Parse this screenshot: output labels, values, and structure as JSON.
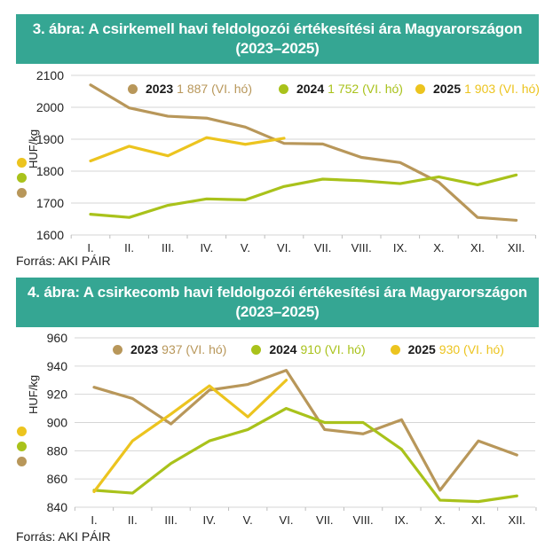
{
  "colors": {
    "title_bg": "#35a693",
    "2023": "#b8975a",
    "2024": "#a9c21b",
    "2025": "#ecc41f",
    "grid": "#d6d6d6"
  },
  "chart_data": [
    {
      "type": "line",
      "title": "3. ábra: A csirkemell havi feldolgozói értékesítési ára Magyarországon",
      "subtitle": "(2023–2025)",
      "xlabel": "",
      "ylabel": "HUF/kg",
      "ylim": [
        1600,
        2100
      ],
      "yticks": [
        1600,
        1700,
        1800,
        1900,
        2000,
        2100
      ],
      "grid": true,
      "legend_position": "top-right",
      "categories": [
        "I.",
        "II.",
        "III.",
        "IV.",
        "V.",
        "VI.",
        "VII.",
        "VIII.",
        "IX.",
        "X.",
        "XI.",
        "XII."
      ],
      "series": [
        {
          "name": "2023",
          "legend_value": "1 887 (VI. hó)",
          "values": [
            2070,
            1998,
            1972,
            1966,
            1938,
            1887,
            1885,
            1843,
            1827,
            1765,
            1655,
            1646
          ]
        },
        {
          "name": "2024",
          "legend_value": "1 752 (VI. hó)",
          "values": [
            1665,
            1655,
            1693,
            1713,
            1710,
            1752,
            1775,
            1770,
            1761,
            1782,
            1757,
            1788
          ]
        },
        {
          "name": "2025",
          "legend_value": "1 903 (VI. hó)",
          "values": [
            1832,
            1878,
            1848,
            1905,
            1884,
            1903
          ]
        }
      ],
      "source": "Forrás: AKI PÁIR"
    },
    {
      "type": "line",
      "title": "4. ábra: A csirkecomb havi feldolgozói értékesítési ára Magyarországon",
      "subtitle": "(2023–2025)",
      "xlabel": "",
      "ylabel": "HUF/kg",
      "ylim": [
        840,
        960
      ],
      "yticks": [
        840,
        860,
        880,
        900,
        920,
        940,
        960
      ],
      "grid": true,
      "legend_position": "top-right",
      "categories": [
        "I.",
        "II.",
        "III.",
        "IV.",
        "V.",
        "VI.",
        "VII.",
        "VIII.",
        "IX.",
        "X.",
        "XI.",
        "XII."
      ],
      "series": [
        {
          "name": "2023",
          "legend_value": "937 (VI. hó)",
          "values": [
            925,
            917,
            899,
            923,
            927,
            937,
            895,
            892,
            902,
            852,
            887,
            877
          ]
        },
        {
          "name": "2024",
          "legend_value": "910 (VI. hó)",
          "values": [
            852,
            850,
            871,
            887,
            895,
            910,
            900,
            900,
            881,
            845,
            844,
            848
          ]
        },
        {
          "name": "2025",
          "legend_value": "930 (VI. hó)",
          "values": [
            851,
            887,
            906,
            926,
            904,
            930
          ]
        }
      ],
      "source": "Forrás: AKI PÁIR"
    }
  ]
}
